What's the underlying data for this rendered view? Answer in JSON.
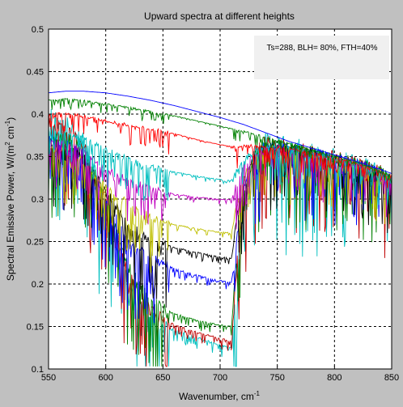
{
  "chart_data": {
    "type": "line",
    "title": "Upward spectra at different heights",
    "xlabel": "Wavenumber, cm",
    "xlabel_sup": "-1",
    "ylabel_main": "Spectral Emissive Power, W/(m",
    "ylabel_sup1": "2",
    "ylabel_mid": " cm",
    "ylabel_sup2": "-1",
    "ylabel_end": ")",
    "annotation": "Ts=288, BLH= 80%, FTH=40%",
    "xlim": [
      550,
      850
    ],
    "ylim": [
      0.1,
      0.5
    ],
    "xticks": [
      550,
      600,
      650,
      700,
      750,
      800,
      850
    ],
    "yticks": [
      0.1,
      0.15,
      0.2,
      0.25,
      0.3,
      0.35,
      0.4,
      0.45,
      0.5
    ],
    "xtick_labels": [
      "550",
      "600",
      "650",
      "700",
      "750",
      "800",
      "850"
    ],
    "ytick_labels": [
      "0.1",
      "0.15",
      "0.2",
      "0.25",
      "0.3",
      "0.35",
      "0.4",
      "0.45",
      "0.5"
    ],
    "grid": true,
    "background": "#c0c0c0",
    "plot_background": "#ffffff",
    "series": [
      {
        "color": "#00bfbf",
        "start": 0.4,
        "plateau": 0.126,
        "noise": 0.06,
        "x": [
          550,
          565,
          580,
          600,
          620,
          640,
          660,
          680,
          700,
          710,
          715,
          720,
          730,
          740,
          750,
          760,
          780,
          800,
          820,
          840,
          850
        ],
        "y": [
          0.4,
          0.392,
          0.37,
          0.3,
          0.2,
          0.16,
          0.146,
          0.137,
          0.128,
          0.125,
          0.22,
          0.3,
          0.36,
          0.37,
          0.368,
          0.365,
          0.358,
          0.352,
          0.345,
          0.335,
          0.32
        ]
      },
      {
        "color": "#bf0000",
        "start": 0.39,
        "plateau": 0.134,
        "noise": 0.05,
        "x": [
          550,
          565,
          580,
          600,
          620,
          640,
          660,
          680,
          700,
          710,
          715,
          720,
          730,
          740,
          750,
          760,
          780,
          800,
          820,
          840,
          850
        ],
        "y": [
          0.39,
          0.385,
          0.365,
          0.3,
          0.21,
          0.168,
          0.152,
          0.143,
          0.136,
          0.133,
          0.23,
          0.3,
          0.355,
          0.367,
          0.366,
          0.363,
          0.357,
          0.351,
          0.344,
          0.334,
          0.321
        ]
      },
      {
        "color": "#008000",
        "start": 0.38,
        "plateau": 0.15,
        "noise": 0.045,
        "x": [
          550,
          565,
          580,
          600,
          620,
          640,
          660,
          680,
          700,
          710,
          715,
          720,
          730,
          740,
          750,
          760,
          780,
          800,
          820,
          840,
          850
        ],
        "y": [
          0.375,
          0.372,
          0.36,
          0.3,
          0.22,
          0.18,
          0.165,
          0.157,
          0.152,
          0.15,
          0.24,
          0.3,
          0.35,
          0.364,
          0.364,
          0.362,
          0.356,
          0.35,
          0.343,
          0.333,
          0.322
        ]
      },
      {
        "color": "#0000ff",
        "start": 0.37,
        "plateau": 0.2,
        "noise": 0.04,
        "x": [
          550,
          565,
          580,
          600,
          620,
          640,
          660,
          680,
          700,
          710,
          715,
          720,
          730,
          740,
          750,
          760,
          780,
          800,
          820,
          840,
          850
        ],
        "y": [
          0.37,
          0.365,
          0.355,
          0.3,
          0.25,
          0.23,
          0.218,
          0.21,
          0.204,
          0.202,
          0.26,
          0.31,
          0.35,
          0.362,
          0.363,
          0.361,
          0.355,
          0.349,
          0.342,
          0.332,
          0.323
        ]
      },
      {
        "color": "#000000",
        "start": 0.36,
        "plateau": 0.228,
        "noise": 0.035,
        "x": [
          550,
          565,
          580,
          600,
          620,
          640,
          660,
          680,
          700,
          710,
          715,
          720,
          730,
          740,
          750,
          760,
          780,
          800,
          820,
          840,
          850
        ],
        "y": [
          0.36,
          0.358,
          0.35,
          0.31,
          0.27,
          0.25,
          0.243,
          0.237,
          0.232,
          0.23,
          0.28,
          0.32,
          0.35,
          0.36,
          0.362,
          0.36,
          0.354,
          0.348,
          0.341,
          0.331,
          0.324
        ]
      },
      {
        "color": "#bfbf00",
        "start": 0.36,
        "plateau": 0.26,
        "noise": 0.03,
        "x": [
          550,
          565,
          580,
          600,
          620,
          640,
          660,
          680,
          700,
          710,
          715,
          720,
          730,
          740,
          750,
          760,
          780,
          800,
          820,
          840,
          850
        ],
        "y": [
          0.36,
          0.356,
          0.345,
          0.315,
          0.295,
          0.278,
          0.27,
          0.265,
          0.261,
          0.26,
          0.295,
          0.325,
          0.35,
          0.358,
          0.361,
          0.359,
          0.353,
          0.347,
          0.34,
          0.33,
          0.325
        ]
      },
      {
        "color": "#bf00bf",
        "start": 0.37,
        "plateau": 0.3,
        "noise": 0.025,
        "x": [
          550,
          565,
          580,
          600,
          620,
          640,
          660,
          680,
          700,
          710,
          715,
          720,
          730,
          740,
          750,
          760,
          780,
          800,
          820,
          840,
          850
        ],
        "y": [
          0.368,
          0.365,
          0.358,
          0.335,
          0.322,
          0.312,
          0.306,
          0.302,
          0.3,
          0.299,
          0.32,
          0.338,
          0.352,
          0.358,
          0.361,
          0.359,
          0.353,
          0.347,
          0.34,
          0.33,
          0.326
        ]
      },
      {
        "color": "#00bfbf",
        "start": 0.38,
        "plateau": 0.322,
        "noise": 0.02,
        "x": [
          550,
          565,
          580,
          600,
          620,
          640,
          660,
          680,
          700,
          710,
          715,
          720,
          730,
          740,
          750,
          760,
          780,
          800,
          820,
          840,
          850
        ],
        "y": [
          0.38,
          0.378,
          0.372,
          0.358,
          0.348,
          0.338,
          0.332,
          0.327,
          0.323,
          0.322,
          0.335,
          0.347,
          0.356,
          0.36,
          0.361,
          0.36,
          0.354,
          0.348,
          0.341,
          0.331,
          0.327
        ]
      },
      {
        "color": "#ff0000",
        "start": 0.4,
        "plateau": 0.358,
        "noise": 0.012,
        "x": [
          550,
          565,
          580,
          600,
          620,
          640,
          660,
          680,
          700,
          710,
          715,
          720,
          730,
          740,
          750,
          760,
          780,
          800,
          820,
          840,
          850
        ],
        "y": [
          0.4,
          0.401,
          0.398,
          0.392,
          0.387,
          0.383,
          0.377,
          0.37,
          0.364,
          0.362,
          0.362,
          0.363,
          0.363,
          0.362,
          0.361,
          0.36,
          0.355,
          0.349,
          0.342,
          0.332,
          0.328
        ]
      },
      {
        "color": "#008000",
        "start": 0.415,
        "plateau": 0.37,
        "noise": 0.006,
        "x": [
          550,
          565,
          580,
          600,
          620,
          640,
          660,
          680,
          700,
          710,
          715,
          720,
          730,
          740,
          750,
          760,
          780,
          800,
          820,
          840,
          850
        ],
        "y": [
          0.416,
          0.418,
          0.416,
          0.412,
          0.408,
          0.403,
          0.398,
          0.392,
          0.386,
          0.383,
          0.381,
          0.38,
          0.377,
          0.373,
          0.369,
          0.366,
          0.358,
          0.351,
          0.343,
          0.333,
          0.329
        ]
      },
      {
        "color": "#0000ff",
        "start": 0.425,
        "plateau": 0.38,
        "noise": 0.0,
        "x": [
          550,
          565,
          580,
          600,
          620,
          640,
          660,
          680,
          700,
          710,
          715,
          720,
          730,
          740,
          750,
          760,
          780,
          800,
          820,
          840,
          850
        ],
        "y": [
          0.425,
          0.427,
          0.427,
          0.425,
          0.421,
          0.416,
          0.41,
          0.403,
          0.396,
          0.392,
          0.39,
          0.388,
          0.383,
          0.378,
          0.373,
          0.368,
          0.36,
          0.352,
          0.344,
          0.335,
          0.33
        ]
      }
    ]
  }
}
